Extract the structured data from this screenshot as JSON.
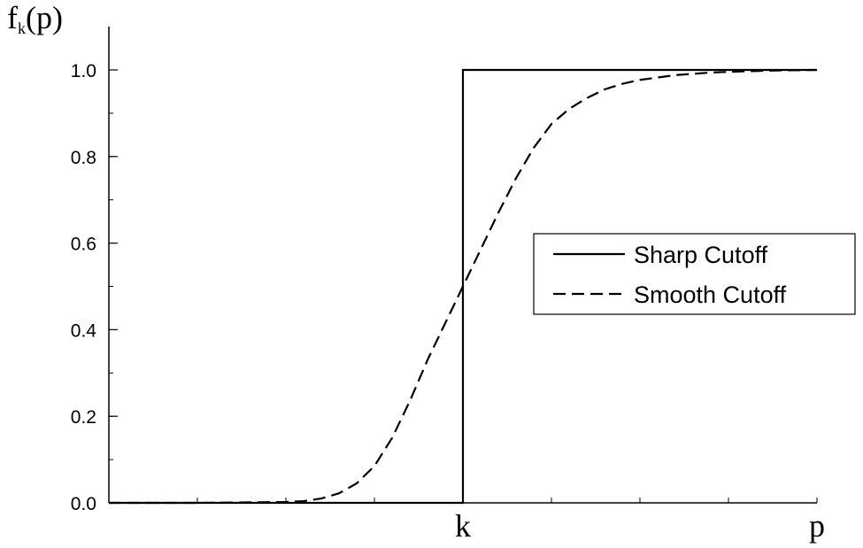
{
  "chart_data": {
    "type": "line",
    "ylabel": {
      "main": "f",
      "sub": "k",
      "suffix": "(p)"
    },
    "x_tick_labels": [
      {
        "label": "k",
        "x": 4
      },
      {
        "label": "p",
        "x": 8
      }
    ],
    "xlim": [
      0,
      8
    ],
    "x_minor_ticks": [
      1,
      2,
      3,
      4,
      5,
      6,
      7,
      8
    ],
    "ylim": [
      0,
      1.0
    ],
    "y_ticks": [
      {
        "value": 0.0,
        "label": "0.0"
      },
      {
        "value": 0.2,
        "label": "0.2"
      },
      {
        "value": 0.4,
        "label": "0.4"
      },
      {
        "value": 0.6,
        "label": "0.6"
      },
      {
        "value": 0.8,
        "label": "0.8"
      },
      {
        "value": 1.0,
        "label": "1.0"
      }
    ],
    "y_minor_step": 0.1,
    "grid": false,
    "legend_position": "right",
    "series": [
      {
        "name": "Sharp Cutoff",
        "style": "solid",
        "color": "#000000",
        "x": [
          0,
          4,
          4,
          8
        ],
        "y": [
          0,
          0,
          1,
          1
        ]
      },
      {
        "name": "Smooth Cutoff",
        "style": "dashed",
        "color": "#000000",
        "x": [
          0,
          1,
          2,
          2.2,
          2.4,
          2.6,
          2.8,
          3.0,
          3.2,
          3.4,
          3.6,
          3.8,
          4.0,
          4.2,
          4.4,
          4.6,
          4.8,
          5.0,
          5.2,
          5.4,
          5.6,
          5.8,
          6.0,
          6.4,
          6.8,
          7.2,
          7.6,
          8.0
        ],
        "y": [
          0,
          0,
          0.002,
          0.004,
          0.01,
          0.022,
          0.045,
          0.085,
          0.15,
          0.235,
          0.33,
          0.415,
          0.5,
          0.585,
          0.67,
          0.75,
          0.82,
          0.875,
          0.91,
          0.935,
          0.955,
          0.968,
          0.977,
          0.988,
          0.994,
          0.997,
          0.999,
          1.0
        ]
      }
    ]
  }
}
